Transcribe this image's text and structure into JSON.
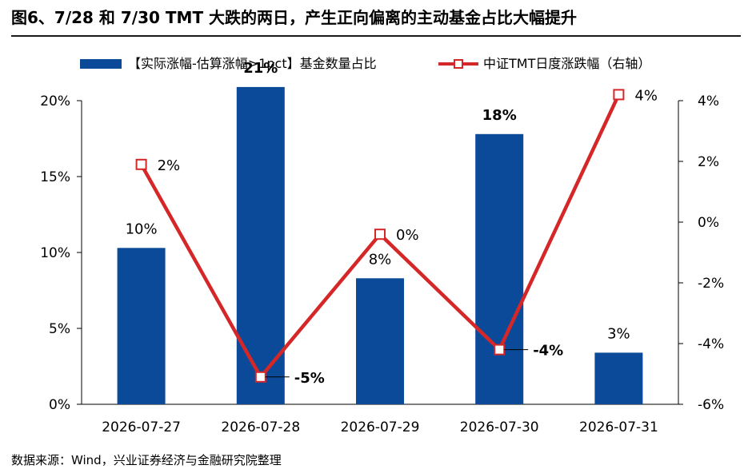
{
  "page": {
    "title": "图6、7/28 和 7/30 TMT 大跌的两日，产生正向偏离的主动基金占比大幅提升",
    "source": "数据来源：Wind，兴业证券经济与金融研究院整理"
  },
  "chart_data": {
    "type": "bar",
    "categories": [
      "2026-07-27",
      "2026-07-28",
      "2026-07-29",
      "2026-07-30",
      "2026-07-31"
    ],
    "series": [
      {
        "name": "【实际涨幅-估算涨幅>1pct】基金数量占比",
        "type": "bar",
        "axis": "left",
        "values": [
          10.3,
          20.9,
          8.3,
          17.8,
          3.4
        ],
        "labels": [
          "10%",
          "21%",
          "8%",
          "18%",
          "3%"
        ],
        "bold_labels": [
          false,
          true,
          false,
          true,
          false
        ],
        "color": "#0b4a99"
      },
      {
        "name": "中证TMT日度涨跌幅（右轴）",
        "type": "line",
        "axis": "right",
        "values": [
          1.9,
          -5.1,
          -0.4,
          -4.2,
          4.2
        ],
        "labels": [
          "2%",
          "-5%",
          "0%",
          "-4%",
          "4%"
        ],
        "bold_labels": [
          false,
          true,
          false,
          true,
          false
        ],
        "color": "#d62728"
      }
    ],
    "y_left": {
      "min": 0,
      "max": 20,
      "ticks": [
        "0%",
        "5%",
        "10%",
        "15%",
        "20%"
      ],
      "tick_values": [
        0,
        5,
        10,
        15,
        20
      ]
    },
    "y_right": {
      "min": -6,
      "max": 4,
      "ticks": [
        "-6%",
        "-4%",
        "-2%",
        "0%",
        "2%",
        "4%"
      ],
      "tick_values": [
        -6,
        -4,
        -2,
        0,
        2,
        4
      ]
    },
    "legend_position": "top",
    "grid": false
  }
}
